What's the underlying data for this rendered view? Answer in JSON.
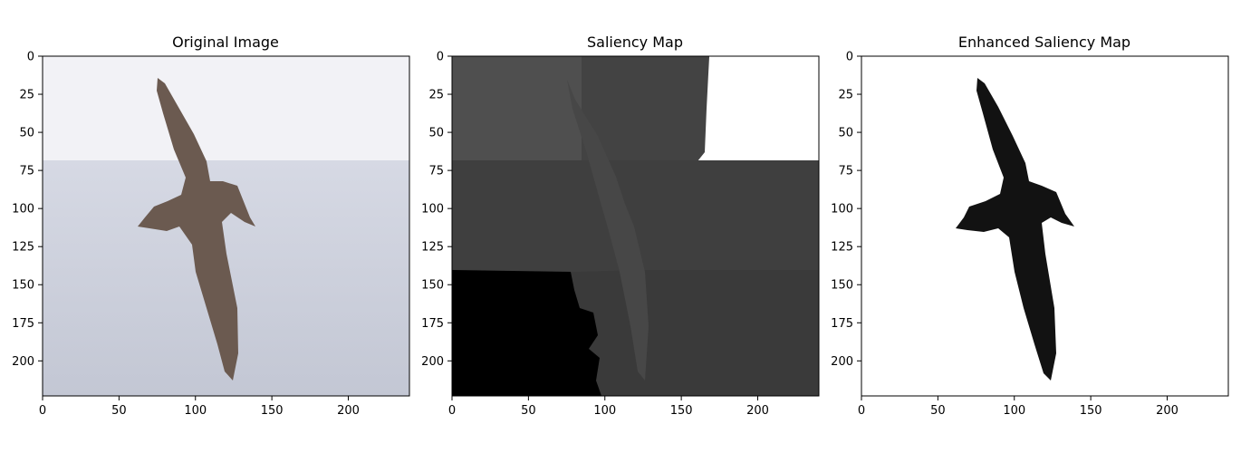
{
  "chart_data": [
    {
      "type": "image",
      "title": "Original Image",
      "image_content": "photo of a dark-brown albatross in flight over grey-blue sea, pale sky upper part",
      "xlim": [
        0,
        240
      ],
      "ylim": [
        223,
        0
      ],
      "xticks": [
        0,
        50,
        100,
        150,
        200
      ],
      "yticks": [
        0,
        25,
        50,
        75,
        100,
        125,
        150,
        175,
        200
      ]
    },
    {
      "type": "image",
      "title": "Saliency Map",
      "image_content": "grayscale segmented saliency map: white top-right block, dark grey regions, black bottom-left block, faint bird silhouette",
      "xlim": [
        0,
        240
      ],
      "ylim": [
        223,
        0
      ],
      "xticks": [
        0,
        50,
        100,
        150,
        200
      ],
      "yticks": [
        0,
        25,
        50,
        75,
        100,
        125,
        150,
        175,
        200
      ]
    },
    {
      "type": "image",
      "title": "Enhanced Saliency Map",
      "image_content": "white background with black bird silhouette",
      "xlim": [
        0,
        240
      ],
      "ylim": [
        223,
        0
      ],
      "xticks": [
        0,
        50,
        100,
        150,
        200
      ],
      "yticks": [
        0,
        25,
        50,
        75,
        100,
        125,
        150,
        175,
        200
      ]
    }
  ],
  "colors": {
    "sky": "#f2f2f6",
    "sea": "#c9cdd9",
    "bird": "#6b5a50",
    "sal_white": "#ffffff",
    "sal_grey1": "#4f4f4f",
    "sal_grey2": "#424242",
    "sal_grey3": "#383838",
    "sal_black": "#000000",
    "enh_bird": "#121212"
  }
}
